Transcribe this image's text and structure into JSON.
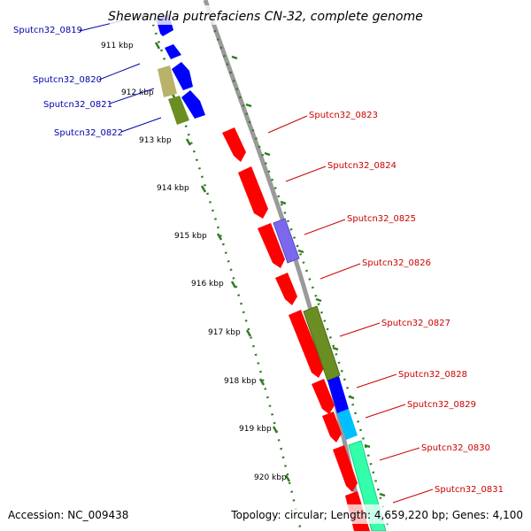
{
  "title": "Shewanella putrefaciens CN-32, complete genome",
  "footer": {
    "accession": "Accession: NC_009438",
    "topology": "Topology: circular; Length: 4,659,220 bp; Genes: 4,100"
  },
  "colors": {
    "backbone": "#999999",
    "ticks": "#2e7d1e",
    "cds_forward": "#ff0000",
    "label_forward": "#cc0000",
    "label_reverse": "#0000aa"
  },
  "kbp_labels": [
    "911 kbp",
    "912 kbp",
    "913 kbp",
    "914 kbp",
    "915 kbp",
    "916 kbp",
    "917 kbp",
    "918 kbp",
    "919 kbp",
    "920 kbp"
  ],
  "reverse_genes": [
    {
      "label": "Sputcn32_0819"
    },
    {
      "label": "Sputcn32_0820"
    },
    {
      "label": "Sputcn32_0821"
    },
    {
      "label": "Sputcn32_0822"
    }
  ],
  "forward_genes": [
    {
      "label": "Sputcn32_0823"
    },
    {
      "label": "Sputcn32_0824"
    },
    {
      "label": "Sputcn32_0825"
    },
    {
      "label": "Sputcn32_0826"
    },
    {
      "label": "Sputcn32_0827"
    },
    {
      "label": "Sputcn32_0828"
    },
    {
      "label": "Sputcn32_0829"
    },
    {
      "label": "Sputcn32_0830"
    },
    {
      "label": "Sputcn32_0831"
    }
  ],
  "feature_colors": [
    "#0000ff",
    "#b8b26a",
    "#6b8e23",
    "#7b68ee",
    "#00bfff",
    "#33ffaa"
  ]
}
